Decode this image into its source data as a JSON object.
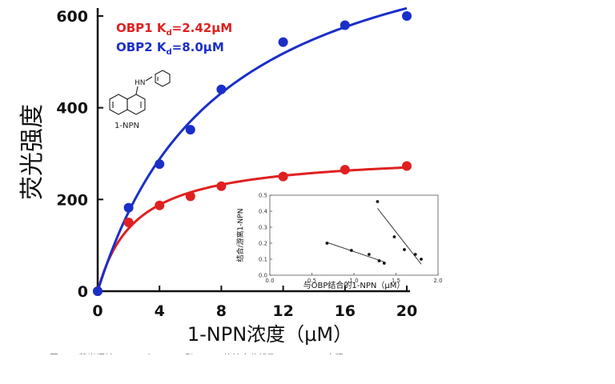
{
  "chart_data": [
    {
      "type": "scatter",
      "title": "",
      "xlabel": "1-NPN浓度（μM）",
      "ylabel": "荧光强度",
      "xlim": [
        0,
        20
      ],
      "ylim": [
        0,
        620
      ],
      "x_ticks": [
        "0",
        "4",
        "8",
        "12",
        "16",
        "20"
      ],
      "y_ticks": [
        "0",
        "200",
        "400",
        "600"
      ],
      "legend_position": "top-left",
      "series": [
        {
          "label_prefix": "OBP1 K",
          "label_sub": "d",
          "label_suffix": "=2.42μM",
          "color": "#e02020",
          "x": [
            0,
            2,
            4,
            6,
            8,
            12,
            16,
            20
          ],
          "y": [
            0,
            150,
            187,
            207,
            229,
            250,
            265,
            273
          ],
          "fit": "saturation binding curve"
        },
        {
          "label_prefix": "OBP2 K",
          "label_sub": "d",
          "label_suffix": "=8.0μM",
          "color": "#1a2fc8",
          "x": [
            0,
            2,
            4,
            6,
            8,
            12,
            16,
            20
          ],
          "y": [
            0,
            182,
            277,
            352,
            440,
            543,
            580,
            600
          ],
          "fit": "saturation binding curve"
        }
      ],
      "structure_label": "1-NPN",
      "structure_atom": "HN"
    },
    {
      "type": "scatter",
      "title": "",
      "xlabel": "与OBP结合的1-NPN（μM）",
      "ylabel": "结合/游离1-NPN",
      "xlim": [
        0,
        2.0
      ],
      "ylim": [
        0,
        0.5
      ],
      "x_ticks": [
        "0.0",
        "0.5",
        "1.0",
        "1.5",
        "2.0"
      ],
      "y_ticks": [
        "0.0",
        "0.1",
        "0.2",
        "0.3",
        "0.4",
        "0.5"
      ],
      "series": [
        {
          "x": [
            0.68,
            0.97,
            1.18,
            1.3,
            1.36
          ],
          "y": [
            0.2,
            0.155,
            0.13,
            0.09,
            0.075
          ]
        },
        {
          "x": [
            1.28,
            1.48,
            1.6,
            1.73,
            1.8
          ],
          "y": [
            0.46,
            0.24,
            0.16,
            0.13,
            0.1
          ]
        }
      ]
    }
  ],
  "caption": "图 3-4 荧光探针 1-NPN 与 OBP1 和 OBP2 的结合曲线及 Scatchard 方程"
}
